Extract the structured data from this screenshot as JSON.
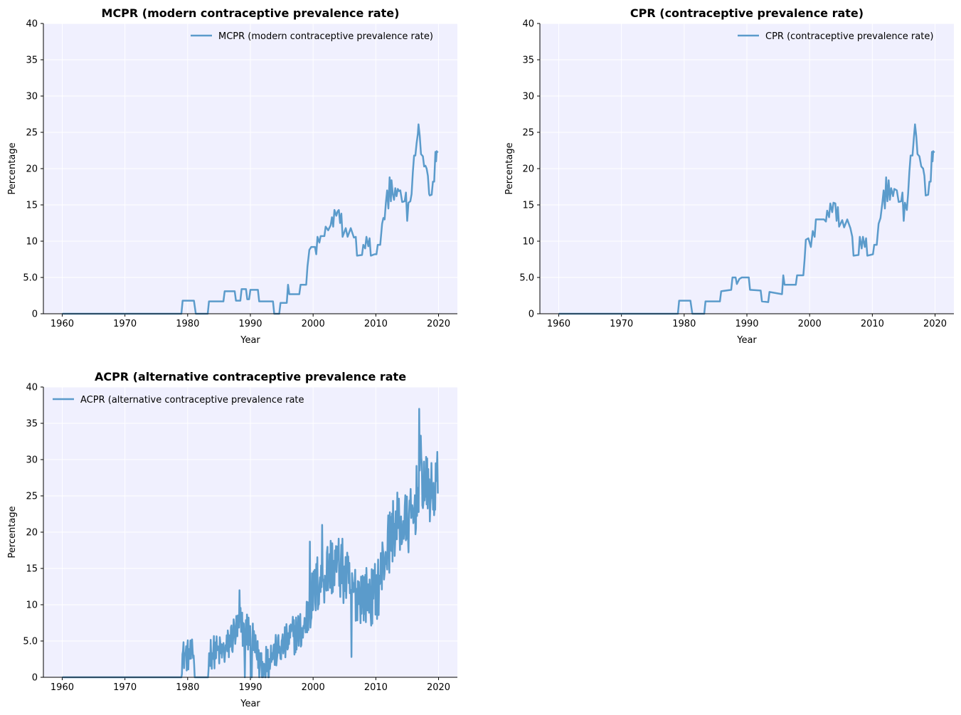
{
  "chart_data": [
    {
      "type": "line",
      "title": "MCPR (modern contraceptive prevalence rate)",
      "xlabel": "Year",
      "ylabel": "Percentage",
      "xlim": [
        1957,
        2023
      ],
      "ylim": [
        0,
        40
      ],
      "xticks": [
        1960,
        1970,
        1980,
        1990,
        2000,
        2010,
        2020
      ],
      "yticks": [
        "0",
        "5.0",
        "10",
        "15",
        "20",
        "25",
        "30",
        "35",
        "40"
      ],
      "grid": true,
      "legend_position": "top-right",
      "series": [
        {
          "name": "MCPR (modern contraceptive prevalence rate)",
          "color": "#5b9bcb",
          "points": [
            [
              1960,
              0
            ],
            [
              1979,
              0
            ],
            [
              1979.2,
              1.8
            ],
            [
              1981,
              1.8
            ],
            [
              1981.3,
              0
            ],
            [
              1983.2,
              0
            ],
            [
              1983.4,
              1.7
            ],
            [
              1985.7,
              1.7
            ],
            [
              1985.9,
              3.1
            ],
            [
              1987.5,
              3.1
            ],
            [
              1987.7,
              1.8
            ],
            [
              1988.4,
              1.8
            ],
            [
              1988.6,
              3.4
            ],
            [
              1989.3,
              3.4
            ],
            [
              1989.5,
              2.0
            ],
            [
              1989.8,
              2.0
            ],
            [
              1990,
              3.3
            ],
            [
              1991.2,
              3.3
            ],
            [
              1991.4,
              1.7
            ],
            [
              1993.6,
              1.7
            ],
            [
              1993.8,
              0
            ],
            [
              1994.6,
              0
            ],
            [
              1994.8,
              1.5
            ],
            [
              1995.8,
              1.5
            ],
            [
              1996,
              4.0
            ],
            [
              1996.2,
              2.7
            ],
            [
              1997.8,
              2.7
            ],
            [
              1998,
              4.0
            ],
            [
              1998.9,
              4.0
            ],
            [
              1999.1,
              6.5
            ],
            [
              1999.4,
              8.8
            ],
            [
              1999.7,
              9.2
            ],
            [
              2000.3,
              9.2
            ],
            [
              2000.5,
              8.2
            ],
            [
              2000.7,
              10.6
            ],
            [
              2001,
              9.8
            ],
            [
              2001.2,
              10.7
            ],
            [
              2001.8,
              10.7
            ],
            [
              2002,
              12.0
            ],
            [
              2002.4,
              11.5
            ],
            [
              2002.8,
              12.2
            ],
            [
              2003,
              13.3
            ],
            [
              2003.2,
              12.0
            ],
            [
              2003.4,
              14.3
            ],
            [
              2003.7,
              13.5
            ],
            [
              2003.9,
              14.1
            ],
            [
              2004.1,
              14.3
            ],
            [
              2004.3,
              12.5
            ],
            [
              2004.5,
              13.8
            ],
            [
              2004.7,
              10.6
            ],
            [
              2005.2,
              11.8
            ],
            [
              2005.5,
              10.6
            ],
            [
              2006,
              11.8
            ],
            [
              2006.5,
              10.5
            ],
            [
              2006.8,
              10.6
            ],
            [
              2007,
              8.0
            ],
            [
              2007.8,
              8.1
            ],
            [
              2008,
              9.5
            ],
            [
              2008.3,
              9.0
            ],
            [
              2008.5,
              10.6
            ],
            [
              2008.8,
              9.3
            ],
            [
              2009,
              10.4
            ],
            [
              2009.2,
              8.0
            ],
            [
              2009.8,
              8.2
            ],
            [
              2010.1,
              8.2
            ],
            [
              2010.3,
              9.5
            ],
            [
              2010.7,
              9.5
            ],
            [
              2011,
              12.4
            ],
            [
              2011.2,
              13.2
            ],
            [
              2011.4,
              13.0
            ],
            [
              2011.6,
              15.3
            ],
            [
              2011.8,
              17.0
            ],
            [
              2012,
              14.5
            ],
            [
              2012.2,
              18.8
            ],
            [
              2012.4,
              15.5
            ],
            [
              2012.5,
              18.4
            ],
            [
              2012.7,
              16.5
            ],
            [
              2012.9,
              15.7
            ],
            [
              2013.1,
              17.3
            ],
            [
              2013.3,
              16.2
            ],
            [
              2013.5,
              17.2
            ],
            [
              2013.7,
              16.9
            ],
            [
              2013.9,
              17.0
            ],
            [
              2014.2,
              15.4
            ],
            [
              2014.6,
              15.5
            ],
            [
              2014.8,
              16.7
            ],
            [
              2015,
              12.8
            ],
            [
              2015.2,
              15.3
            ],
            [
              2015.5,
              15.5
            ],
            [
              2015.7,
              16.5
            ],
            [
              2015.9,
              19.5
            ],
            [
              2016.1,
              21.8
            ],
            [
              2016.3,
              21.8
            ],
            [
              2016.5,
              23.5
            ],
            [
              2016.7,
              24.8
            ],
            [
              2016.8,
              26.1
            ],
            [
              2017,
              24.5
            ],
            [
              2017.2,
              22.0
            ],
            [
              2017.5,
              21.7
            ],
            [
              2017.7,
              20.3
            ],
            [
              2017.9,
              20.4
            ],
            [
              2018.1,
              20.0
            ],
            [
              2018.3,
              19.0
            ],
            [
              2018.5,
              16.5
            ],
            [
              2018.6,
              16.3
            ],
            [
              2018.9,
              16.4
            ],
            [
              2019.1,
              18.2
            ],
            [
              2019.3,
              18.2
            ],
            [
              2019.5,
              22.3
            ],
            [
              2019.6,
              21.0
            ],
            [
              2019.7,
              22.4
            ],
            [
              2019.9,
              22.2
            ]
          ]
        }
      ]
    },
    {
      "type": "line",
      "title": "CPR (contraceptive prevalence rate)",
      "xlabel": "Year",
      "ylabel": "Percentage",
      "xlim": [
        1957,
        2023
      ],
      "ylim": [
        0,
        40
      ],
      "xticks": [
        1960,
        1970,
        1980,
        1990,
        2000,
        2010,
        2020
      ],
      "yticks": [
        "0",
        "5.0",
        "10",
        "15",
        "20",
        "25",
        "30",
        "35",
        "40"
      ],
      "grid": true,
      "legend_position": "top-right",
      "series": [
        {
          "name": "CPR (contraceptive prevalence rate)",
          "color": "#5b9bcb",
          "points": [
            [
              1960,
              0
            ],
            [
              1979,
              0
            ],
            [
              1979.2,
              1.8
            ],
            [
              1981,
              1.8
            ],
            [
              1981.3,
              0
            ],
            [
              1983.2,
              0
            ],
            [
              1983.4,
              1.7
            ],
            [
              1985.7,
              1.7
            ],
            [
              1985.9,
              3.1
            ],
            [
              1987.5,
              3.3
            ],
            [
              1987.7,
              5.0
            ],
            [
              1988.2,
              5.0
            ],
            [
              1988.4,
              4.1
            ],
            [
              1988.8,
              4.8
            ],
            [
              1989.2,
              5.0
            ],
            [
              1990.3,
              5.0
            ],
            [
              1990.5,
              3.3
            ],
            [
              1992.2,
              3.2
            ],
            [
              1992.4,
              1.7
            ],
            [
              1993.4,
              1.6
            ],
            [
              1993.6,
              3.0
            ],
            [
              1995.6,
              2.7
            ],
            [
              1995.8,
              5.3
            ],
            [
              1996,
              4.0
            ],
            [
              1997.8,
              4.0
            ],
            [
              1998,
              5.3
            ],
            [
              1999,
              5.3
            ],
            [
              1999.2,
              7.5
            ],
            [
              1999.4,
              10.2
            ],
            [
              1999.8,
              10.4
            ],
            [
              2000.2,
              9.2
            ],
            [
              2000.5,
              11.4
            ],
            [
              2000.8,
              10.6
            ],
            [
              2001,
              13.0
            ],
            [
              2002.3,
              13.0
            ],
            [
              2002.6,
              12.7
            ],
            [
              2002.8,
              14.2
            ],
            [
              2003.1,
              13.3
            ],
            [
              2003.3,
              15.2
            ],
            [
              2003.6,
              14.0
            ],
            [
              2003.8,
              15.3
            ],
            [
              2004.1,
              15.2
            ],
            [
              2004.3,
              12.8
            ],
            [
              2004.5,
              14.7
            ],
            [
              2004.7,
              12.0
            ],
            [
              2005.2,
              12.9
            ],
            [
              2005.5,
              11.9
            ],
            [
              2006,
              13.0
            ],
            [
              2006.5,
              11.8
            ],
            [
              2006.8,
              10.6
            ],
            [
              2007,
              8.0
            ],
            [
              2007.8,
              8.1
            ],
            [
              2008,
              10.6
            ],
            [
              2008.3,
              9.0
            ],
            [
              2008.5,
              10.6
            ],
            [
              2008.8,
              9.2
            ],
            [
              2009,
              10.4
            ],
            [
              2009.2,
              8.0
            ],
            [
              2010.1,
              8.2
            ],
            [
              2010.3,
              9.5
            ],
            [
              2010.7,
              9.5
            ],
            [
              2011,
              12.4
            ],
            [
              2011.3,
              13.2
            ],
            [
              2011.6,
              15.3
            ],
            [
              2011.8,
              17.0
            ],
            [
              2012,
              14.5
            ],
            [
              2012.2,
              18.8
            ],
            [
              2012.4,
              15.5
            ],
            [
              2012.6,
              18.4
            ],
            [
              2012.8,
              15.7
            ],
            [
              2013,
              17.3
            ],
            [
              2013.3,
              16.2
            ],
            [
              2013.5,
              17.2
            ],
            [
              2013.9,
              17.0
            ],
            [
              2014.2,
              15.4
            ],
            [
              2014.6,
              15.5
            ],
            [
              2014.8,
              16.7
            ],
            [
              2015,
              12.8
            ],
            [
              2015.2,
              15.3
            ],
            [
              2015.5,
              14.3
            ],
            [
              2015.7,
              16.5
            ],
            [
              2015.9,
              19.5
            ],
            [
              2016.1,
              21.8
            ],
            [
              2016.4,
              21.8
            ],
            [
              2016.6,
              24.0
            ],
            [
              2016.8,
              26.1
            ],
            [
              2017,
              24.5
            ],
            [
              2017.2,
              22.0
            ],
            [
              2017.5,
              21.7
            ],
            [
              2017.8,
              20.3
            ],
            [
              2018.1,
              20.0
            ],
            [
              2018.3,
              19.0
            ],
            [
              2018.5,
              16.3
            ],
            [
              2018.9,
              16.4
            ],
            [
              2019.1,
              18.2
            ],
            [
              2019.3,
              18.2
            ],
            [
              2019.5,
              22.3
            ],
            [
              2019.6,
              21.0
            ],
            [
              2019.7,
              22.4
            ],
            [
              2019.9,
              22.2
            ]
          ]
        }
      ]
    },
    {
      "type": "line",
      "title": "ACPR (alternative contraceptive prevalence rate",
      "xlabel": "Year",
      "ylabel": "Percentage",
      "xlim": [
        1957,
        2023
      ],
      "ylim": [
        0,
        40
      ],
      "xticks": [
        1960,
        1970,
        1980,
        1990,
        2000,
        2010,
        2020
      ],
      "yticks": [
        "0",
        "5.0",
        "10",
        "15",
        "20",
        "25",
        "30",
        "35",
        "40"
      ],
      "grid": true,
      "legend_position": "top-left",
      "series": [
        {
          "name": "ACPR (alternative contraceptive prevalence rate",
          "color": "#5b9bcb",
          "anchors": [
            [
              1960,
              0
            ],
            [
              1979,
              0
            ],
            [
              1979.1,
              3
            ],
            [
              1981,
              3
            ],
            [
              1981.3,
              0
            ],
            [
              1983.2,
              0
            ],
            [
              1983.5,
              3.5
            ],
            [
              1986,
              3.5
            ],
            [
              1987,
              5.5
            ],
            [
              1988.5,
              7
            ],
            [
              1990,
              6
            ],
            [
              1991,
              3
            ],
            [
              1993,
              3
            ],
            [
              1995,
              4
            ],
            [
              1997,
              6
            ],
            [
              1998.5,
              6.5
            ],
            [
              1999.5,
              10
            ],
            [
              2001,
              13.5
            ],
            [
              2003,
              15.5
            ],
            [
              2004.5,
              15
            ],
            [
              2006,
              12
            ],
            [
              2008,
              11.5
            ],
            [
              2009.5,
              11
            ],
            [
              2010.5,
              13
            ],
            [
              2011.5,
              17
            ],
            [
              2013,
              21
            ],
            [
              2015,
              21
            ],
            [
              2016,
              22
            ],
            [
              2017,
              28
            ],
            [
              2018,
              26
            ],
            [
              2019,
              25
            ],
            [
              2019.9,
              27
            ]
          ],
          "noise_amplitude": 4.5,
          "peaks": [
            [
              1988.3,
              12.0
            ],
            [
              1999.5,
              18.7
            ],
            [
              2001.4,
              21.0
            ],
            [
              2016.9,
              37.0
            ],
            [
              2017.2,
              33.3
            ],
            [
              2006.1,
              2.8
            ]
          ]
        }
      ]
    }
  ]
}
